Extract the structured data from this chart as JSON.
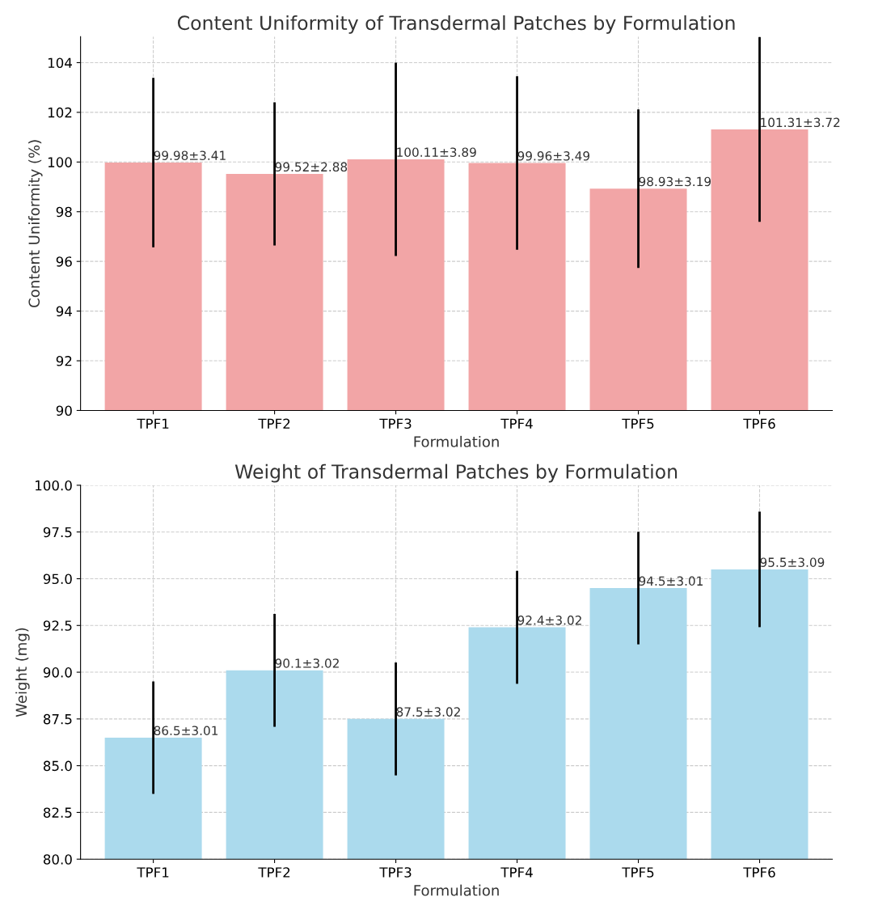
{
  "chart_data": [
    {
      "type": "bar",
      "title": "Content Uniformity of Transdermal Patches by Formulation",
      "xlabel": "Formulation",
      "ylabel": "Content Uniformity (%)",
      "categories": [
        "TPF1",
        "TPF2",
        "TPF3",
        "TPF4",
        "TPF5",
        "TPF6"
      ],
      "values": [
        99.98,
        99.52,
        100.11,
        99.96,
        98.93,
        101.31
      ],
      "errors": [
        3.41,
        2.88,
        3.89,
        3.49,
        3.19,
        3.72
      ],
      "value_labels": [
        "99.98±3.41",
        "99.52±2.88",
        "100.11±3.89",
        "99.96±3.49",
        "98.93±3.19",
        "101.31±3.72"
      ],
      "color": "#f2a5a6",
      "ylim": [
        90,
        105.05
      ],
      "yticks": [
        90,
        92,
        94,
        96,
        98,
        100,
        102,
        104
      ],
      "grid": true
    },
    {
      "type": "bar",
      "title": "Weight of Transdermal Patches by Formulation",
      "xlabel": "Formulation",
      "ylabel": "Weight (mg)",
      "categories": [
        "TPF1",
        "TPF2",
        "TPF3",
        "TPF4",
        "TPF5",
        "TPF6"
      ],
      "values": [
        86.5,
        90.1,
        87.5,
        92.4,
        94.5,
        95.5
      ],
      "errors": [
        3.01,
        3.02,
        3.02,
        3.02,
        3.01,
        3.09
      ],
      "value_labels": [
        "86.5±3.01",
        "90.1±3.02",
        "87.5±3.02",
        "92.4±3.02",
        "94.5±3.01",
        "95.5±3.09"
      ],
      "color": "#abdaed",
      "ylim": [
        80,
        100
      ],
      "yticks": [
        {
          "value": 80,
          "label": "80.0"
        },
        {
          "value": 82.5,
          "label": "82.5"
        },
        {
          "value": 85,
          "label": "85.0"
        },
        {
          "value": 87.5,
          "label": "87.5"
        },
        {
          "value": 90,
          "label": "90.0"
        },
        {
          "value": 92.5,
          "label": "92.5"
        },
        {
          "value": 95,
          "label": "95.0"
        },
        {
          "value": 97.5,
          "label": "97.5"
        },
        {
          "value": 100,
          "label": "100.0"
        }
      ],
      "grid": true
    }
  ]
}
